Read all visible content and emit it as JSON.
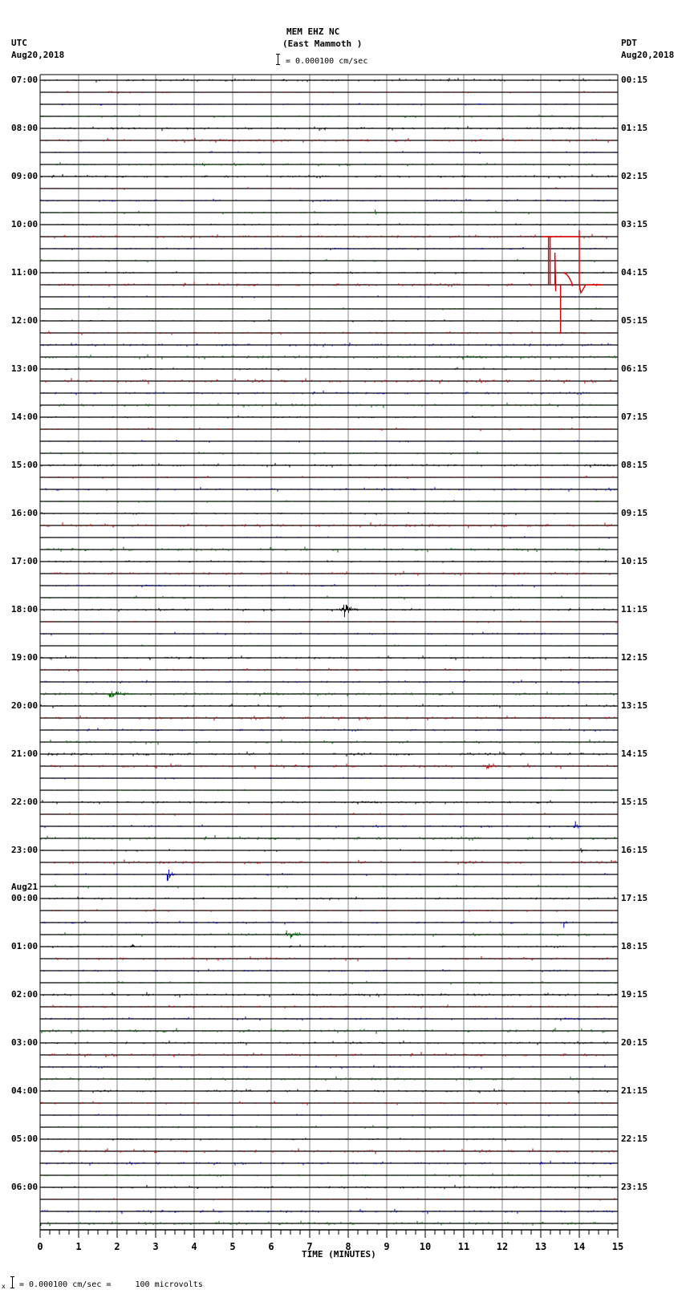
{
  "header": {
    "station": "MEM EHZ NC",
    "location": "(East Mammoth )",
    "scale": "= 0.000100 cm/sec",
    "left_tz": "UTC",
    "left_date": "Aug20,2018",
    "right_tz": "PDT",
    "right_date": "Aug20,2018"
  },
  "footer": {
    "note": "= 0.000100 cm/sec =     100 microvolts",
    "marker": "x"
  },
  "chart_data": {
    "type": "line",
    "title": "MEM EHZ NC (East Mammoth )",
    "xlabel": "TIME (MINUTES)",
    "ylabel": "",
    "x_ticks": [
      "0",
      "1",
      "2",
      "3",
      "4",
      "5",
      "6",
      "7",
      "8",
      "9",
      "10",
      "11",
      "12",
      "13",
      "14",
      "15"
    ],
    "xlim": [
      0,
      15
    ],
    "grid": true,
    "trace_colors": [
      "#000000",
      "#cc0000",
      "#0000cc",
      "#006600"
    ],
    "traces_per_hour": 4,
    "left_labels": [
      {
        "row": 0,
        "text": "07:00"
      },
      {
        "row": 4,
        "text": "08:00"
      },
      {
        "row": 8,
        "text": "09:00"
      },
      {
        "row": 12,
        "text": "10:00"
      },
      {
        "row": 16,
        "text": "11:00"
      },
      {
        "row": 20,
        "text": "12:00"
      },
      {
        "row": 24,
        "text": "13:00"
      },
      {
        "row": 28,
        "text": "14:00"
      },
      {
        "row": 32,
        "text": "15:00"
      },
      {
        "row": 36,
        "text": "16:00"
      },
      {
        "row": 40,
        "text": "17:00"
      },
      {
        "row": 44,
        "text": "18:00"
      },
      {
        "row": 48,
        "text": "19:00"
      },
      {
        "row": 52,
        "text": "20:00"
      },
      {
        "row": 56,
        "text": "21:00"
      },
      {
        "row": 60,
        "text": "22:00"
      },
      {
        "row": 64,
        "text": "23:00"
      },
      {
        "row": 68,
        "text": "00:00",
        "prefix": "Aug21"
      },
      {
        "row": 72,
        "text": "01:00"
      },
      {
        "row": 76,
        "text": "02:00"
      },
      {
        "row": 80,
        "text": "03:00"
      },
      {
        "row": 84,
        "text": "04:00"
      },
      {
        "row": 88,
        "text": "05:00"
      },
      {
        "row": 92,
        "text": "06:00"
      }
    ],
    "right_labels": [
      {
        "row": 0,
        "text": "00:15"
      },
      {
        "row": 4,
        "text": "01:15"
      },
      {
        "row": 8,
        "text": "02:15"
      },
      {
        "row": 12,
        "text": "03:15"
      },
      {
        "row": 16,
        "text": "04:15"
      },
      {
        "row": 20,
        "text": "05:15"
      },
      {
        "row": 24,
        "text": "06:15"
      },
      {
        "row": 28,
        "text": "07:15"
      },
      {
        "row": 32,
        "text": "08:15"
      },
      {
        "row": 36,
        "text": "09:15"
      },
      {
        "row": 40,
        "text": "10:15"
      },
      {
        "row": 44,
        "text": "11:15"
      },
      {
        "row": 48,
        "text": "12:15"
      },
      {
        "row": 52,
        "text": "13:15"
      },
      {
        "row": 56,
        "text": "14:15"
      },
      {
        "row": 60,
        "text": "15:15"
      },
      {
        "row": 64,
        "text": "16:15"
      },
      {
        "row": 68,
        "text": "17:15"
      },
      {
        "row": 72,
        "text": "18:15"
      },
      {
        "row": 76,
        "text": "19:15"
      },
      {
        "row": 80,
        "text": "20:15"
      },
      {
        "row": 84,
        "text": "21:15"
      },
      {
        "row": 88,
        "text": "22:15"
      },
      {
        "row": 92,
        "text": "23:15"
      }
    ],
    "num_traces": 96,
    "events": [
      {
        "row": 13,
        "minute": 13.2,
        "type": "calibration_pulse",
        "amplitude": 60,
        "note": "large red step/pulse spanning rows 13-20"
      },
      {
        "row": 44,
        "minute": 7.8,
        "amplitude": 18,
        "duration": 0.5
      },
      {
        "row": 51,
        "minute": 1.8,
        "amplitude": 6,
        "duration": 1.0
      },
      {
        "row": 66,
        "minute": 3.3,
        "amplitude": 10,
        "duration": 0.3
      },
      {
        "row": 71,
        "minute": 6.4,
        "amplitude": 9,
        "duration": 0.6
      },
      {
        "row": 70,
        "minute": 4.5,
        "amplitude": 8,
        "duration": 0.15
      },
      {
        "row": 70,
        "minute": 13.6,
        "amplitude": 7,
        "duration": 0.15
      },
      {
        "row": 72,
        "minute": 2.4,
        "amplitude": 6,
        "duration": 0.1
      },
      {
        "row": 73,
        "minute": 5.7,
        "amplitude": 6,
        "duration": 0.1
      },
      {
        "row": 37,
        "minute": 11.1,
        "amplitude": 7,
        "duration": 0.1
      },
      {
        "row": 11,
        "minute": 8.7,
        "amplitude": 5,
        "duration": 0.1
      },
      {
        "row": 57,
        "minute": 11.6,
        "amplitude": 6,
        "duration": 0.3
      },
      {
        "row": 62,
        "minute": 13.9,
        "amplitude": 7,
        "duration": 0.2
      },
      {
        "row": 64,
        "minute": 14.0,
        "amplitude": 5,
        "duration": 0.3
      },
      {
        "row": 7,
        "minute": 4.2,
        "amplitude": 3,
        "duration": 0.6
      },
      {
        "row": 90,
        "minute": 13.0,
        "amplitude": 3,
        "duration": 0.3
      }
    ]
  }
}
